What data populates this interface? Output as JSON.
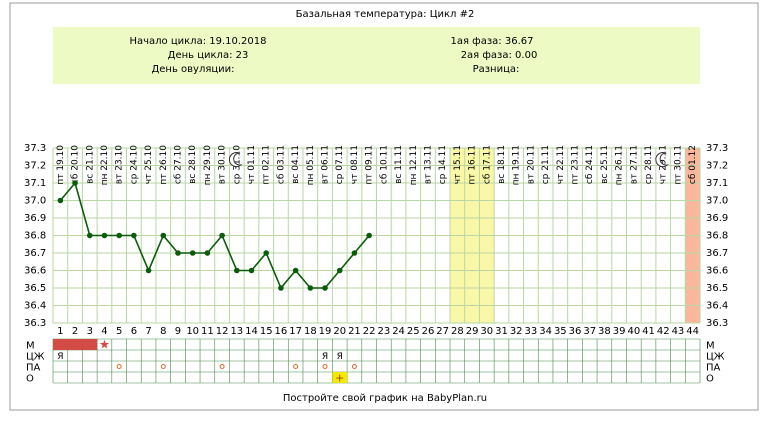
{
  "chart_data": {
    "type": "line",
    "title": "Базальная температура: Цикл #2",
    "info_left": [
      "Начало цикла: 19.10.2018",
      "День цикла: 23",
      "День овуляции:"
    ],
    "info_right": [
      "1ая фаза: 36.67",
      "2ая фаза: 0.00",
      "Разница:"
    ],
    "footer": "Постройте свой график на BabyPlan.ru",
    "categories": [
      1,
      2,
      3,
      4,
      5,
      6,
      7,
      8,
      9,
      10,
      11,
      12,
      13,
      14,
      15,
      16,
      17,
      18,
      19,
      20,
      21,
      22,
      23,
      24,
      25,
      26,
      27,
      28,
      29,
      30,
      31,
      32,
      33,
      34,
      35,
      36,
      37,
      38,
      39,
      40,
      41,
      42,
      43,
      44
    ],
    "dates": [
      "пт 19.10",
      "сб 20.10",
      "вс 21.10",
      "пн 22.10",
      "вт 23.10",
      "ср 24.10",
      "чт 25.10",
      "пт 26.10",
      "сб 27.10",
      "вс 28.10",
      "пн 29.10",
      "вт 30.10",
      "ср 31.10",
      "чт 01.11",
      "пт 02.11",
      "сб 03.11",
      "вс 04.11",
      "пн 05.11",
      "вт 06.11",
      "ср 07.11",
      "чт 08.11",
      "пт 09.11",
      "сб 10.11",
      "вс 11.11",
      "пн 12.11",
      "вт 13.11",
      "ср 14.11",
      "чт 15.11",
      "пт 16.11",
      "сб 17.11",
      "вс 18.11",
      "пн 19.11",
      "вт 20.11",
      "ср 21.11",
      "чт 22.11",
      "пт 23.11",
      "сб 24.11",
      "вс 25.11",
      "пн 26.11",
      "вт 27.11",
      "ср 28.11",
      "чт 29.11",
      "пт 30.11",
      "сб 01.12"
    ],
    "series": [
      {
        "color": "#0a5c0a",
        "values": [
          37.0,
          37.1,
          36.8,
          36.8,
          36.8,
          36.8,
          36.6,
          36.8,
          36.7,
          36.7,
          36.7,
          36.8,
          36.6,
          36.6,
          36.7,
          36.5,
          36.6,
          36.5,
          36.5,
          36.6,
          36.7,
          36.8,
          null,
          null,
          null,
          null,
          null,
          null,
          null,
          null,
          null,
          null,
          null,
          null,
          null,
          null,
          null,
          null,
          null,
          null,
          null,
          null,
          null,
          null
        ]
      }
    ],
    "ylim": [
      36.3,
      37.3
    ],
    "yticks": [
      36.3,
      36.4,
      36.5,
      36.6,
      36.7,
      36.8,
      36.9,
      {
        "value": 37,
        "label": "37.0"
      },
      37.1,
      37.2,
      37.3
    ],
    "grid": true,
    "bands": [
      {
        "from": 28,
        "to": 30,
        "color": "#f8f8a8"
      },
      {
        "from": 44,
        "to": 44,
        "color": "#f9b89c"
      }
    ],
    "moon_days": [
      13,
      42
    ],
    "row_labels": [
      "М",
      "ЦЖ",
      "ПА",
      "О"
    ],
    "m_days": [
      1,
      2,
      3
    ],
    "m_color": "#d44a45",
    "m_star_day": 4,
    "czh": [
      {
        "day": 1,
        "text": "Я"
      },
      {
        "day": 19,
        "text": "Я"
      },
      {
        "day": 20,
        "text": "Я"
      }
    ],
    "pa_days": [
      5,
      8,
      12,
      17,
      19,
      21
    ],
    "o": [
      {
        "day": 20,
        "text": "+"
      }
    ]
  }
}
